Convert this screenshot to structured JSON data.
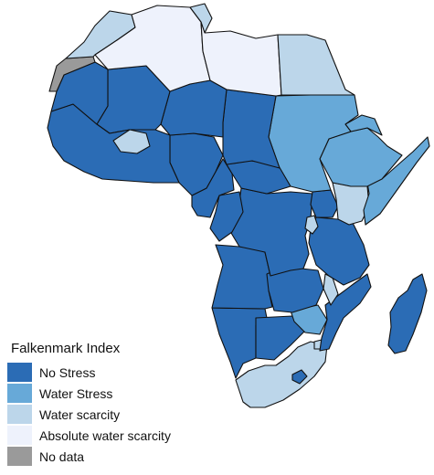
{
  "legend": {
    "title": "Falkenmark Index",
    "items": [
      {
        "key": "no_stress",
        "label": "No Stress",
        "color": "#2b6cb5"
      },
      {
        "key": "water_stress",
        "label": "Water Stress",
        "color": "#67a9d8"
      },
      {
        "key": "water_scarcity",
        "label": "Water scarcity",
        "color": "#bcd6ea"
      },
      {
        "key": "absolute",
        "label": "Absolute water scarcity",
        "color": "#eef2fc"
      },
      {
        "key": "no_data",
        "label": "No data",
        "color": "#9a9a9a"
      }
    ]
  },
  "regions": [
    {
      "name": "Morocco",
      "category": "water_scarcity"
    },
    {
      "name": "Western Sahara",
      "category": "no_data"
    },
    {
      "name": "Algeria",
      "category": "absolute"
    },
    {
      "name": "Tunisia",
      "category": "water_scarcity"
    },
    {
      "name": "Libya",
      "category": "absolute"
    },
    {
      "name": "Egypt",
      "category": "water_scarcity"
    },
    {
      "name": "Mauritania",
      "category": "no_stress"
    },
    {
      "name": "Mali",
      "category": "no_stress"
    },
    {
      "name": "Niger",
      "category": "no_stress"
    },
    {
      "name": "Chad",
      "category": "no_stress"
    },
    {
      "name": "Sudan",
      "category": "water_stress"
    },
    {
      "name": "Eritrea",
      "category": "water_stress"
    },
    {
      "name": "Ethiopia",
      "category": "water_stress"
    },
    {
      "name": "Somalia",
      "category": "water_stress"
    },
    {
      "name": "Kenya",
      "category": "water_scarcity"
    },
    {
      "name": "West Africa coast",
      "category": "no_stress"
    },
    {
      "name": "Burkina Faso",
      "category": "water_scarcity"
    },
    {
      "name": "Nigeria",
      "category": "no_stress"
    },
    {
      "name": "Central African Republic",
      "category": "no_stress"
    },
    {
      "name": "Cameroon",
      "category": "no_stress"
    },
    {
      "name": "Congo",
      "category": "no_stress"
    },
    {
      "name": "DR Congo",
      "category": "no_stress"
    },
    {
      "name": "Uganda",
      "category": "no_stress"
    },
    {
      "name": "Rwanda Burundi",
      "category": "water_scarcity"
    },
    {
      "name": "Tanzania",
      "category": "no_stress"
    },
    {
      "name": "Angola",
      "category": "no_stress"
    },
    {
      "name": "Zambia",
      "category": "no_stress"
    },
    {
      "name": "Malawi",
      "category": "water_scarcity"
    },
    {
      "name": "Mozambique",
      "category": "no_stress"
    },
    {
      "name": "Zimbabwe",
      "category": "water_stress"
    },
    {
      "name": "Namibia",
      "category": "no_stress"
    },
    {
      "name": "Botswana",
      "category": "no_stress"
    },
    {
      "name": "South Africa",
      "category": "water_scarcity"
    },
    {
      "name": "Lesotho",
      "category": "no_stress"
    },
    {
      "name": "Swaziland",
      "category": "water_scarcity"
    },
    {
      "name": "Madagascar",
      "category": "no_stress"
    }
  ]
}
